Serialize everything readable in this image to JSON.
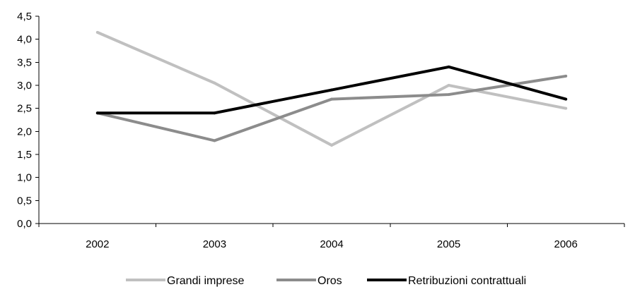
{
  "chart_data": {
    "type": "line",
    "categories": [
      "2002",
      "2003",
      "2004",
      "2005",
      "2006"
    ],
    "ylim": [
      0,
      4.5
    ],
    "yticks": [
      "0,0",
      "0,5",
      "1,0",
      "1,5",
      "2,0",
      "2,5",
      "3,0",
      "3,5",
      "4,0",
      "4,5"
    ],
    "ytick_values": [
      0,
      0.5,
      1.0,
      1.5,
      2.0,
      2.5,
      3.0,
      3.5,
      4.0,
      4.5
    ],
    "grid": false,
    "legend_position": "bottom",
    "series": [
      {
        "name": "Grandi imprese",
        "color": "#c0c0c0",
        "values": [
          4.15,
          3.05,
          1.7,
          3.0,
          2.5
        ]
      },
      {
        "name": "Oros",
        "color": "#8c8c8c",
        "values": [
          2.4,
          1.8,
          2.7,
          2.8,
          3.2
        ]
      },
      {
        "name": "Retribuzioni contrattuali",
        "color": "#000000",
        "values": [
          2.4,
          2.4,
          2.9,
          3.4,
          2.7
        ]
      }
    ]
  }
}
